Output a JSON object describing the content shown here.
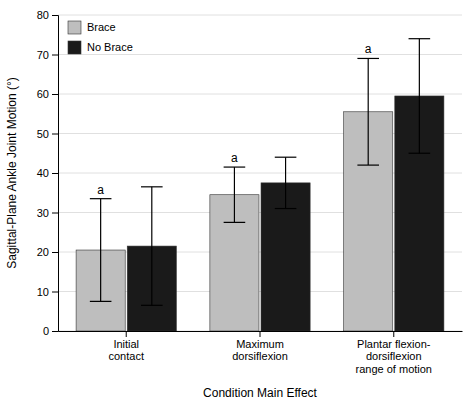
{
  "chart_data": {
    "type": "bar",
    "xlabel": "Condition Main Effect",
    "ylabel": "Sagittal-Plane Ankle Joint Motion (°)",
    "categories": [
      "Initial\ncontact",
      "Maximum\ndorsiflexion",
      "Plantar flexion-\ndorsiflexion\nrange of motion"
    ],
    "series": [
      {
        "name": "Brace",
        "color": "#bebebe",
        "values": [
          20.5,
          34.5,
          55.5
        ],
        "errors": [
          13.0,
          7.0,
          13.5
        ]
      },
      {
        "name": "No Brace",
        "color": "#1a1a1a",
        "values": [
          21.5,
          37.5,
          59.5
        ],
        "errors": [
          15.0,
          6.5,
          14.5
        ]
      }
    ],
    "annotations": [
      "a",
      "a",
      "a"
    ],
    "ylim": [
      0,
      80
    ],
    "yticks": [
      0,
      10,
      20,
      30,
      40,
      50,
      60,
      70,
      80
    ],
    "grid": true,
    "legend": "upper left"
  }
}
